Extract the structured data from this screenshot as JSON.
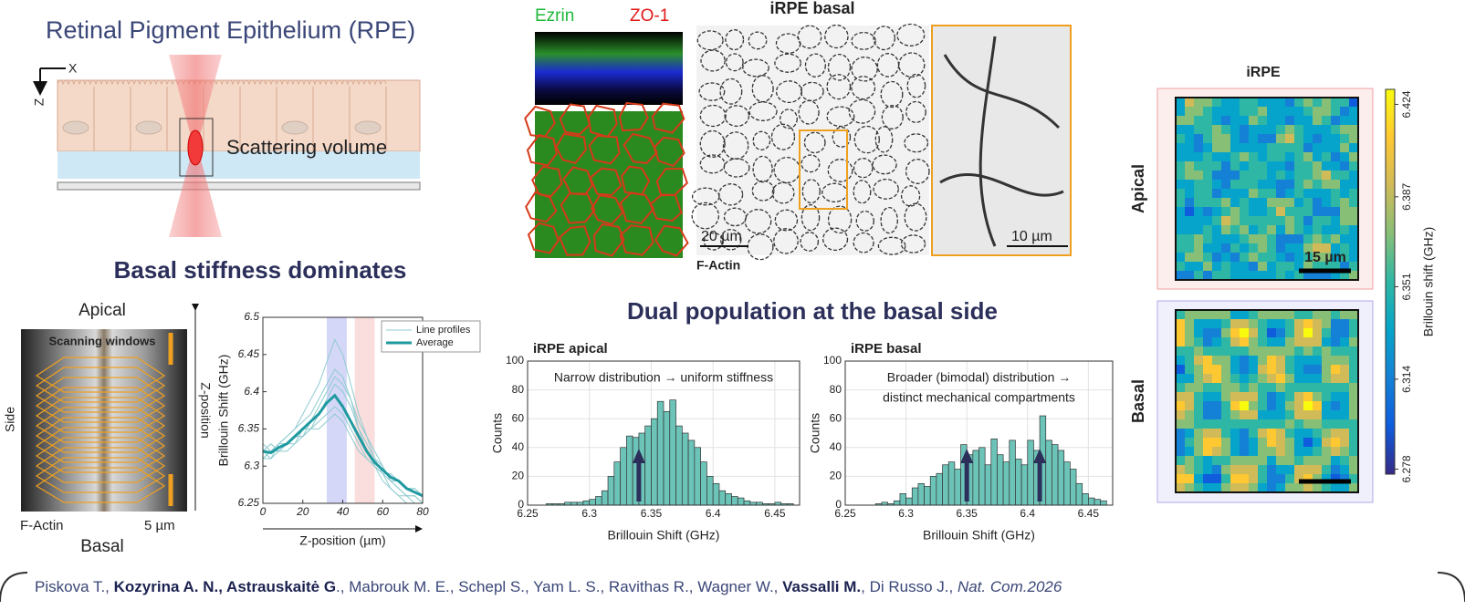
{
  "header": {
    "title": "Retinal Pigment Epithelium (RPE)",
    "x_axis": "X",
    "z_axis": "Z",
    "scattering": "Scattering volume"
  },
  "left": {
    "title": "Basal stiffness dominates",
    "apical": "Apical",
    "windows": "Scanning windows",
    "side": "Side",
    "zpos": "Z-position",
    "factin": "F-Actin",
    "scale": "5 µm",
    "basal": "Basal"
  },
  "middle": {
    "ezrin": "Ezrin",
    "zo1": "ZO-1",
    "basal_title": "iRPE  basal",
    "scale_a": "20 µm",
    "scale_b": "10 µm",
    "factin": "F-Actin",
    "hist_title": "Dual population at the basal side"
  },
  "right": {
    "title": "iRPE",
    "apical": "Apical",
    "basal": "Basal",
    "scale": "15 µm"
  },
  "citation": [
    {
      "text": "Piskova T., ",
      "style": "normal"
    },
    {
      "text": "Kozyrina A. N., Astrauskaitė G",
      "style": "bold"
    },
    {
      "text": "., Mabrouk M. E., Schepl S., Yam L. S., Ravithas R., Wagner W., ",
      "style": "normal"
    },
    {
      "text": "Vassalli M.",
      "style": "bold"
    },
    {
      "text": ", Di Russo J., ",
      "style": "normal"
    },
    {
      "text": "Nat. Com.",
      "style": "italic"
    },
    {
      "text": "2026",
      "style": "italic"
    }
  ],
  "chart_data": [
    {
      "type": "line",
      "xlabel": "Z-position (µm)",
      "ylabel": "Brillouin Shift (GHz)",
      "xlim": [
        0,
        80
      ],
      "ylim": [
        6.25,
        6.5
      ],
      "xticks": [
        0,
        20,
        40,
        60,
        80
      ],
      "yticks": [
        6.25,
        6.3,
        6.35,
        6.4,
        6.45,
        6.5
      ],
      "grid": false,
      "bands": [
        {
          "from": 32,
          "to": 42,
          "color": "#c9cdf5"
        },
        {
          "from": 46,
          "to": 56,
          "color": "#f9d4d4"
        }
      ],
      "x": [
        0,
        4,
        8,
        12,
        16,
        20,
        24,
        28,
        32,
        36,
        40,
        44,
        48,
        52,
        56,
        60,
        64,
        68,
        72,
        76,
        80
      ],
      "series": [
        {
          "name": "Line profiles",
          "color": "#8fcbd0",
          "profiles": [
            [
              6.31,
              6.32,
              6.33,
              6.34,
              6.35,
              6.37,
              6.39,
              6.41,
              6.44,
              6.47,
              6.45,
              6.41,
              6.37,
              6.34,
              6.31,
              6.29,
              6.27,
              6.26,
              6.25,
              6.25,
              6.25
            ],
            [
              6.33,
              6.32,
              6.33,
              6.33,
              6.34,
              6.34,
              6.35,
              6.36,
              6.37,
              6.38,
              6.37,
              6.35,
              6.33,
              6.31,
              6.3,
              6.29,
              6.29,
              6.28,
              6.27,
              6.27,
              6.26
            ],
            [
              6.32,
              6.31,
              6.32,
              6.32,
              6.33,
              6.35,
              6.35,
              6.37,
              6.39,
              6.41,
              6.4,
              6.38,
              6.35,
              6.33,
              6.31,
              6.3,
              6.28,
              6.27,
              6.26,
              6.26,
              6.25
            ],
            [
              6.31,
              6.32,
              6.32,
              6.33,
              6.33,
              6.34,
              6.36,
              6.38,
              6.4,
              6.42,
              6.41,
              6.39,
              6.36,
              6.34,
              6.32,
              6.3,
              6.28,
              6.27,
              6.26,
              6.26,
              6.25
            ],
            [
              6.32,
              6.33,
              6.32,
              6.33,
              6.34,
              6.34,
              6.35,
              6.35,
              6.36,
              6.37,
              6.36,
              6.34,
              6.32,
              6.31,
              6.3,
              6.29,
              6.28,
              6.28,
              6.27,
              6.27,
              6.26
            ],
            [
              6.31,
              6.31,
              6.33,
              6.34,
              6.35,
              6.36,
              6.37,
              6.39,
              6.41,
              6.43,
              6.42,
              6.39,
              6.35,
              6.32,
              6.3,
              6.28,
              6.27,
              6.26,
              6.26,
              6.25,
              6.25
            ]
          ]
        },
        {
          "name": "Average",
          "color": "#1f9aa0",
          "values": [
            6.32,
            6.318,
            6.325,
            6.33,
            6.34,
            6.35,
            6.36,
            6.37,
            6.385,
            6.395,
            6.38,
            6.36,
            6.34,
            6.32,
            6.305,
            6.295,
            6.285,
            6.28,
            6.27,
            6.265,
            6.26
          ]
        }
      ]
    },
    {
      "type": "histogram",
      "title": "iRPE apical",
      "annotation": "Narrow distribution → uniform stiffness",
      "xlabel": "Brillouin Shift (GHz)",
      "ylabel": "Counts",
      "color": "#6cc3b8",
      "xlim": [
        6.25,
        6.47
      ],
      "ylim": [
        0,
        100
      ],
      "xticks": [
        6.25,
        6.3,
        6.35,
        6.4,
        6.45
      ],
      "yticks": [
        0,
        20,
        40,
        60,
        80,
        100
      ],
      "grid": true,
      "markers": [
        6.34
      ],
      "bins": [
        6.265,
        6.27,
        6.275,
        6.28,
        6.285,
        6.29,
        6.295,
        6.3,
        6.305,
        6.31,
        6.315,
        6.32,
        6.325,
        6.33,
        6.335,
        6.34,
        6.345,
        6.35,
        6.355,
        6.36,
        6.365,
        6.37,
        6.375,
        6.38,
        6.385,
        6.39,
        6.395,
        6.4,
        6.405,
        6.41,
        6.415,
        6.42,
        6.425,
        6.43,
        6.435,
        6.44,
        6.445,
        6.45,
        6.455,
        6.46,
        6.465
      ],
      "values": [
        1,
        1,
        1,
        2,
        2,
        2,
        3,
        4,
        6,
        10,
        20,
        30,
        40,
        48,
        47,
        50,
        55,
        60,
        72,
        65,
        73,
        55,
        50,
        45,
        40,
        30,
        20,
        15,
        10,
        8,
        6,
        5,
        3,
        2,
        2,
        1,
        1,
        2,
        1,
        1
      ]
    },
    {
      "type": "histogram",
      "title": "iRPE basal",
      "annotation": "Broader (bimodal) distribution →",
      "annotation2": "distinct mechanical compartments",
      "xlabel": "Brillouin Shift (GHz)",
      "ylabel": "Counts",
      "color": "#6cc3b8",
      "xlim": [
        6.25,
        6.47
      ],
      "ylim": [
        0,
        100
      ],
      "xticks": [
        6.25,
        6.3,
        6.35,
        6.4,
        6.45
      ],
      "yticks": [
        0,
        20,
        40,
        60,
        80,
        100
      ],
      "grid": true,
      "markers": [
        6.35,
        6.41
      ],
      "bins": [
        6.275,
        6.28,
        6.285,
        6.29,
        6.295,
        6.3,
        6.305,
        6.31,
        6.315,
        6.32,
        6.325,
        6.33,
        6.335,
        6.34,
        6.345,
        6.35,
        6.355,
        6.36,
        6.365,
        6.37,
        6.375,
        6.38,
        6.385,
        6.39,
        6.395,
        6.4,
        6.405,
        6.41,
        6.415,
        6.42,
        6.425,
        6.43,
        6.435,
        6.44,
        6.445,
        6.45,
        6.455,
        6.46,
        6.465
      ],
      "values": [
        1,
        2,
        1,
        3,
        8,
        5,
        12,
        15,
        13,
        20,
        22,
        28,
        30,
        25,
        42,
        35,
        38,
        40,
        28,
        46,
        35,
        30,
        45,
        32,
        28,
        45,
        38,
        62,
        45,
        42,
        38,
        30,
        25,
        15,
        8,
        5,
        4,
        3
      ]
    },
    {
      "type": "colorbar",
      "label": "Brillouin shift (GHz)",
      "ylim": [
        6.276,
        6.43
      ],
      "yticks": [
        6.278,
        6.314,
        6.351,
        6.387,
        6.424
      ],
      "colors": [
        "#352a87",
        "#0f5cdd",
        "#1481d6",
        "#06a4ca",
        "#2eb7a4",
        "#87bf77",
        "#d1bb59",
        "#fec832",
        "#f9fb0e"
      ]
    }
  ]
}
